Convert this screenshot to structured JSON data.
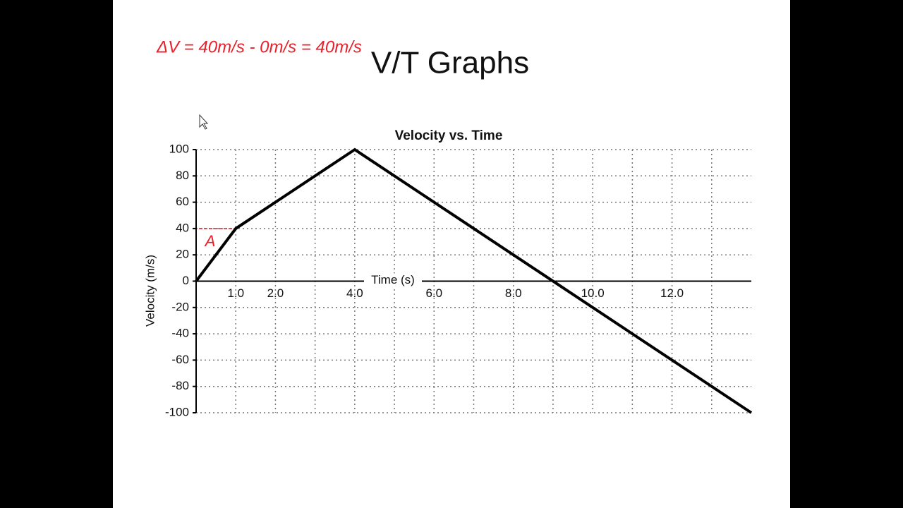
{
  "slide": {
    "title": "V/T Graphs",
    "annotation": "ΔV = 40m/s - 0m/s = 40m/s"
  },
  "chart_data": {
    "type": "line",
    "title": "Velocity vs. Time",
    "x_label": "Time (s)",
    "y_label": "Velocity (m/s)",
    "x": [
      0,
      1,
      4,
      14
    ],
    "values": [
      0,
      40,
      100,
      -100
    ],
    "color": "#000000",
    "xlim": [
      0,
      14
    ],
    "xticks": [
      {
        "value": 1,
        "label": "1.0"
      },
      {
        "value": 2,
        "label": "2.0"
      },
      {
        "value": 4,
        "label": "4.0"
      },
      {
        "value": 6,
        "label": "6.0"
      },
      {
        "value": 8,
        "label": "8.0"
      },
      {
        "value": 10,
        "label": "10.0"
      },
      {
        "value": 12,
        "label": "12.0"
      }
    ],
    "x_minor_grid": [
      3,
      5,
      7,
      9,
      11,
      13
    ],
    "ylim": [
      -100,
      100
    ],
    "yticks": [
      -100,
      -80,
      -60,
      -40,
      -20,
      0,
      20,
      40,
      60,
      80,
      100
    ],
    "grid": true,
    "annotation": "A",
    "annotation_color": "#e8202a"
  }
}
